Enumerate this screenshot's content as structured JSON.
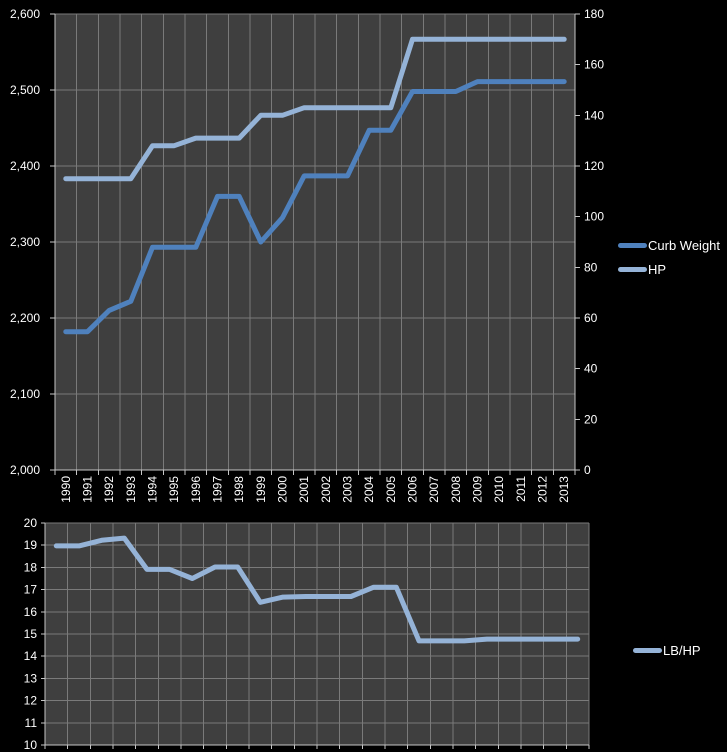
{
  "colors": {
    "background": "#000000",
    "plot_background": "#3F3F3F",
    "gridline": "#7A7A7A",
    "axis_line": "#C6C6C6",
    "tick_label": "#FFFFFF",
    "curb_weight_line": "#4F81BD",
    "hp_line": "#95B3D7",
    "lb_per_hp_line": "#95B3D7"
  },
  "chart_data": [
    {
      "type": "line",
      "title": "",
      "categories": [
        "1990",
        "1991",
        "1992",
        "1993",
        "1994",
        "1995",
        "1996",
        "1997",
        "1998",
        "1999",
        "2000",
        "2001",
        "2002",
        "2003",
        "2004",
        "2005",
        "2006",
        "2007",
        "2008",
        "2009",
        "2010",
        "2011",
        "2012",
        "2013"
      ],
      "series": [
        {
          "name": "Curb Weight",
          "axis": "left",
          "color": "#4F81BD",
          "values": [
            2182,
            2182,
            2210,
            2222,
            2293,
            2293,
            2293,
            2360,
            2360,
            2300,
            2332,
            2387,
            2387,
            2387,
            2447,
            2447,
            2498,
            2498,
            2498,
            2511,
            2511,
            2511,
            2511,
            2511
          ]
        },
        {
          "name": "HP",
          "axis": "right",
          "color": "#95B3D7",
          "values": [
            115,
            115,
            115,
            115,
            128,
            128,
            131,
            131,
            131,
            140,
            140,
            143,
            143,
            143,
            143,
            143,
            170,
            170,
            170,
            170,
            170,
            170,
            170,
            170
          ]
        }
      ],
      "left_axis": {
        "min": 2000,
        "max": 2600,
        "step": 100,
        "tick_labels": [
          "2,000",
          "2,100",
          "2,200",
          "2,300",
          "2,400",
          "2,500",
          "2,600"
        ]
      },
      "right_axis": {
        "min": 0,
        "max": 180,
        "step": 20,
        "tick_labels": [
          "0",
          "20",
          "40",
          "60",
          "80",
          "100",
          "120",
          "140",
          "160",
          "180"
        ]
      },
      "x_axis": {
        "tick_labels_visible": true,
        "label_rotation_deg": -90
      },
      "legend": {
        "position": "right",
        "entries": [
          "Curb Weight",
          "HP"
        ]
      },
      "grid": true
    },
    {
      "type": "line",
      "title": "",
      "categories": [
        "1990",
        "1991",
        "1992",
        "1993",
        "1994",
        "1995",
        "1996",
        "1997",
        "1998",
        "1999",
        "2000",
        "2001",
        "2002",
        "2003",
        "2004",
        "2005",
        "2006",
        "2007",
        "2008",
        "2009",
        "2010",
        "2011",
        "2012",
        "2013"
      ],
      "series": [
        {
          "name": "LB/HP",
          "axis": "left",
          "color": "#95B3D7",
          "values": [
            18.97,
            18.97,
            19.22,
            19.32,
            17.91,
            17.91,
            17.5,
            18.02,
            18.02,
            16.43,
            16.66,
            16.69,
            16.69,
            16.69,
            17.11,
            17.11,
            14.69,
            14.69,
            14.69,
            14.77,
            14.77,
            14.77,
            14.77,
            14.77
          ]
        }
      ],
      "left_axis": {
        "min": 10,
        "max": 20,
        "step": 1,
        "tick_labels": [
          "10",
          "11",
          "12",
          "13",
          "14",
          "15",
          "16",
          "17",
          "18",
          "19",
          "20"
        ]
      },
      "right_axis": null,
      "x_axis": {
        "tick_labels_visible": false
      },
      "legend": {
        "position": "right",
        "entries": [
          "LB/HP"
        ]
      },
      "grid": true
    }
  ]
}
